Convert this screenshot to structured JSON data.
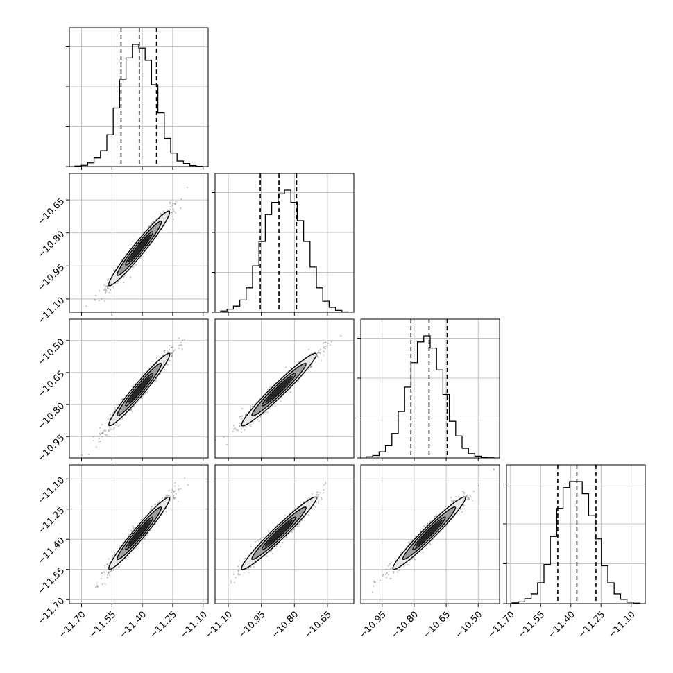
{
  "chart_data": {
    "type": "corner",
    "parameter_count": 4,
    "grid": true,
    "colors": {
      "hist": "#000000",
      "scatter": "#555555",
      "density_dark": "#111111",
      "density_mid": "#777777",
      "density_light": "#cfcfcf",
      "grid": "#b0b0b0"
    },
    "parameters": [
      {
        "range": [
          -11.76,
          -11.075
        ],
        "ticks": [
          -11.7,
          -11.55,
          -11.4,
          -11.25,
          -11.1
        ],
        "tick_labels": [
          "−11.70",
          "−11.55",
          "−11.40",
          "−11.25",
          "−11.10"
        ],
        "quantiles": [
          -11.505,
          -11.415,
          -11.33
        ],
        "hist_counts": [
          0.004,
          0.01,
          0.03,
          0.07,
          0.13,
          0.26,
          0.48,
          0.71,
          0.89,
          1.0,
          0.97,
          0.87,
          0.67,
          0.44,
          0.23,
          0.11,
          0.045,
          0.025,
          0.008,
          0.002
        ]
      },
      {
        "range": [
          -11.16,
          -10.53
        ],
        "ticks": [
          -11.1,
          -10.95,
          -10.8,
          -10.65
        ],
        "tick_labels": [
          "−11.10",
          "−10.95",
          "−10.80",
          "−10.65"
        ],
        "quantiles": [
          -10.955,
          -10.87,
          -10.79
        ],
        "hist_counts": [
          0.01,
          0.025,
          0.05,
          0.1,
          0.2,
          0.38,
          0.58,
          0.8,
          0.9,
          0.97,
          1.0,
          0.9,
          0.75,
          0.58,
          0.37,
          0.2,
          0.09,
          0.04,
          0.015,
          0.003
        ]
      },
      {
        "range": [
          -11.05,
          -10.4
        ],
        "ticks": [
          -10.95,
          -10.8,
          -10.65,
          -10.5
        ],
        "tick_labels": [
          "−10.95",
          "−10.80",
          "−10.65",
          "−10.50"
        ],
        "quantiles": [
          -10.815,
          -10.73,
          -10.645
        ],
        "hist_counts": [
          0.01,
          0.02,
          0.05,
          0.1,
          0.2,
          0.38,
          0.58,
          0.78,
          0.95,
          1.0,
          0.9,
          0.72,
          0.52,
          0.3,
          0.18,
          0.08,
          0.035,
          0.015,
          0.004,
          0.001
        ]
      },
      {
        "range": [
          -11.72,
          -11.03
        ],
        "ticks": [
          -11.7,
          -11.55,
          -11.4,
          -11.25,
          -11.1
        ],
        "tick_labels": [
          "−11.70",
          "−11.55",
          "−11.40",
          "−11.25",
          "−11.10"
        ],
        "quantiles": [
          -11.465,
          -11.37,
          -11.275
        ],
        "hist_counts": [
          0.006,
          0.015,
          0.04,
          0.08,
          0.17,
          0.32,
          0.55,
          0.78,
          0.95,
          1.0,
          1.0,
          0.9,
          0.72,
          0.53,
          0.31,
          0.17,
          0.08,
          0.035,
          0.012,
          0.004
        ]
      }
    ],
    "pairs": [
      {
        "x_param": 0,
        "y_param": 1,
        "center": [
          -11.415,
          -10.87
        ],
        "sigma": [
          0.075,
          0.085
        ],
        "correlation": 0.97
      },
      {
        "x_param": 0,
        "y_param": 2,
        "center": [
          -11.415,
          -10.73
        ],
        "sigma": [
          0.075,
          0.085
        ],
        "correlation": 0.97
      },
      {
        "x_param": 1,
        "y_param": 2,
        "center": [
          -10.87,
          -10.73
        ],
        "sigma": [
          0.085,
          0.085
        ],
        "correlation": 0.97
      },
      {
        "x_param": 0,
        "y_param": 3,
        "center": [
          -11.415,
          -11.37
        ],
        "sigma": [
          0.075,
          0.09
        ],
        "correlation": 0.97
      },
      {
        "x_param": 1,
        "y_param": 3,
        "center": [
          -10.87,
          -11.37
        ],
        "sigma": [
          0.085,
          0.09
        ],
        "correlation": 0.97
      },
      {
        "x_param": 2,
        "y_param": 3,
        "center": [
          -10.73,
          -11.37
        ],
        "sigma": [
          0.085,
          0.09
        ],
        "correlation": 0.97
      }
    ]
  }
}
